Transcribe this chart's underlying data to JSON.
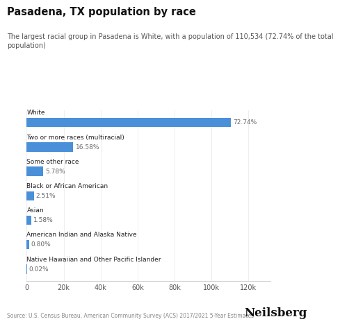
{
  "title": "Pasadena, TX population by race",
  "subtitle": "The largest racial group in Pasadena is White, with a population of 110,534 (72.74% of the total\npopulation)",
  "categories": [
    "White",
    "Two or more races (multiracial)",
    "Some other race",
    "Black or African American",
    "Asian",
    "American Indian and Alaska Native",
    "Native Hawaiian and Other Pacific Islander"
  ],
  "values": [
    110534,
    25207,
    8784,
    3814,
    2400,
    1216,
    30
  ],
  "percentages": [
    "72.74%",
    "16.58%",
    "5.78%",
    "2.51%",
    "1.58%",
    "0.80%",
    "0.02%"
  ],
  "bar_color": "#4a90d9",
  "background_color": "#ffffff",
  "text_color": "#222222",
  "label_color": "#666666",
  "source_text": "Source: U.S. Census Bureau, American Community Survey (ACS) 2017/2021 5-Year Estimates",
  "brand_text": "Neilsberg",
  "xlim": [
    0,
    132000
  ],
  "xtick_values": [
    0,
    20000,
    40000,
    60000,
    80000,
    100000,
    120000
  ],
  "bar_height": 0.38
}
